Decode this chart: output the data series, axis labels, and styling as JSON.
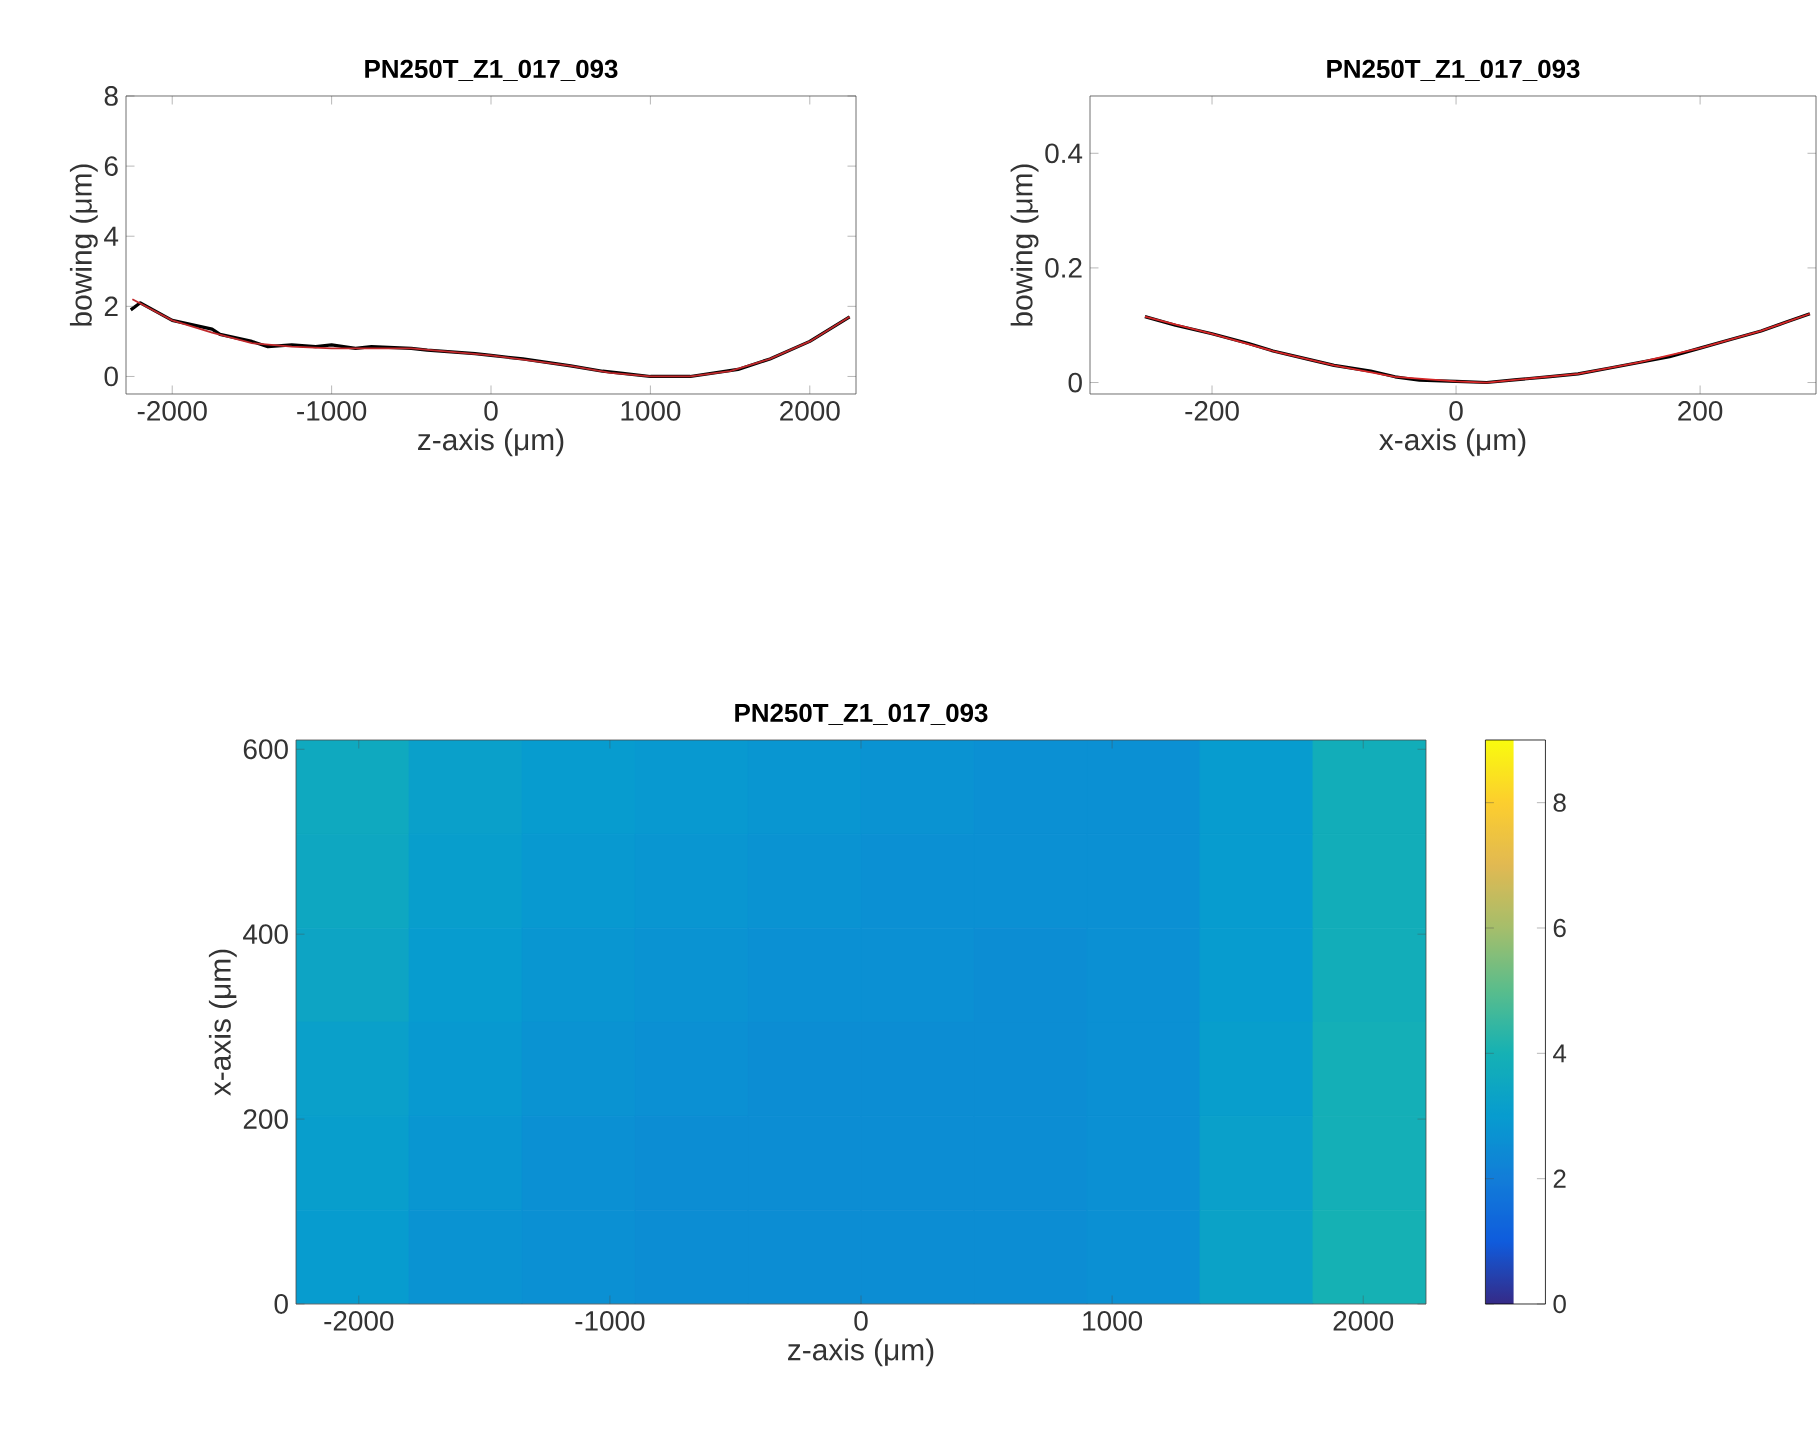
{
  "chart_data": [
    {
      "type": "line",
      "title": "PN250T_Z1_017_093",
      "xlabel": "z-axis (μm)",
      "ylabel": "bowing (μm)",
      "xlim": [
        -2290,
        2290
      ],
      "ylim": [
        -0.5,
        8
      ],
      "xticks": [
        -2000,
        -1000,
        0,
        1000,
        2000
      ],
      "yticks": [
        0,
        2,
        4,
        6,
        8
      ],
      "series": [
        {
          "color": "#000000",
          "x": [
            -2260,
            -2200,
            -2000,
            -1900,
            -1750,
            -1700,
            -1500,
            -1400,
            -1250,
            -1100,
            -1000,
            -850,
            -750,
            -500,
            -400,
            -250,
            -100,
            0,
            200,
            350,
            500,
            700,
            800,
            1000,
            1100,
            1250,
            1400,
            1550,
            1750,
            2000,
            2250
          ],
          "values": [
            1.9,
            2.1,
            1.6,
            1.5,
            1.35,
            1.2,
            1.0,
            0.85,
            0.9,
            0.85,
            0.9,
            0.8,
            0.85,
            0.8,
            0.75,
            0.7,
            0.65,
            0.6,
            0.5,
            0.4,
            0.3,
            0.15,
            0.1,
            0.0,
            0.0,
            0.0,
            0.1,
            0.2,
            0.5,
            1.0,
            1.7
          ]
        },
        {
          "color": "#c0282b",
          "x": [
            -2250,
            -2000,
            -1750,
            -1500,
            -1250,
            -1000,
            -750,
            -500,
            -250,
            0,
            250,
            500,
            750,
            1000,
            1250,
            1500,
            1750,
            2000,
            2250
          ],
          "values": [
            2.2,
            1.6,
            1.25,
            0.95,
            0.85,
            0.8,
            0.8,
            0.8,
            0.7,
            0.6,
            0.45,
            0.3,
            0.1,
            0.0,
            0.0,
            0.15,
            0.5,
            1.0,
            1.7
          ]
        }
      ]
    },
    {
      "type": "line",
      "title": "PN250T_Z1_017_093",
      "xlabel": "x-axis (μm)",
      "ylabel": "bowing (μm)",
      "xlim": [
        -300,
        295
      ],
      "ylim": [
        -0.02,
        0.5
      ],
      "xticks": [
        -200,
        0,
        200
      ],
      "yticks": [
        0,
        0.2,
        0.4
      ],
      "series": [
        {
          "color": "#000000",
          "x": [
            -255,
            -230,
            -200,
            -170,
            -150,
            -120,
            -100,
            -70,
            -50,
            -30,
            0,
            25,
            50,
            75,
            100,
            125,
            150,
            175,
            200,
            225,
            250,
            270,
            290
          ],
          "values": [
            0.115,
            0.1,
            0.085,
            0.068,
            0.055,
            0.04,
            0.03,
            0.02,
            0.01,
            0.004,
            0.002,
            0.0,
            0.005,
            0.01,
            0.015,
            0.025,
            0.035,
            0.045,
            0.06,
            0.075,
            0.09,
            0.105,
            0.12
          ]
        },
        {
          "color": "#d62728",
          "x": [
            -255,
            -200,
            -150,
            -100,
            -50,
            0,
            25,
            50,
            100,
            150,
            200,
            250,
            290
          ],
          "values": [
            0.115,
            0.085,
            0.055,
            0.03,
            0.01,
            0.002,
            0.0,
            0.005,
            0.015,
            0.035,
            0.06,
            0.09,
            0.12
          ]
        }
      ]
    },
    {
      "type": "heatmap",
      "title": "PN250T_Z1_017_093",
      "xlabel": "z-axis (μm)",
      "ylabel": "x-axis (μm)",
      "xlim": [
        -2250,
        2250
      ],
      "ylim": [
        0,
        610
      ],
      "xticks": [
        -2000,
        -1000,
        0,
        1000,
        2000
      ],
      "yticks": [
        0,
        200,
        400,
        600
      ],
      "clim": [
        0,
        9
      ],
      "cticks": [
        0,
        2,
        4,
        6,
        8
      ],
      "x": [
        -2025,
        -1575,
        -1125,
        -675,
        -225,
        225,
        675,
        1125,
        1575,
        2025
      ],
      "y": [
        559,
        457,
        356,
        254,
        152,
        51
      ],
      "cells": [
        [
          3.6,
          3.2,
          3.0,
          2.9,
          2.8,
          2.7,
          2.6,
          2.6,
          3.0,
          3.8
        ],
        [
          3.5,
          3.1,
          2.9,
          2.8,
          2.7,
          2.6,
          2.6,
          2.6,
          3.0,
          3.8
        ],
        [
          3.4,
          3.0,
          2.8,
          2.7,
          2.6,
          2.6,
          2.5,
          2.6,
          3.0,
          3.8
        ],
        [
          3.2,
          2.9,
          2.7,
          2.6,
          2.5,
          2.5,
          2.5,
          2.6,
          3.1,
          3.9
        ],
        [
          3.1,
          2.8,
          2.6,
          2.5,
          2.5,
          2.5,
          2.5,
          2.6,
          3.2,
          3.9
        ],
        [
          3.0,
          2.7,
          2.6,
          2.5,
          2.5,
          2.5,
          2.5,
          2.6,
          3.3,
          4.0
        ]
      ]
    }
  ]
}
